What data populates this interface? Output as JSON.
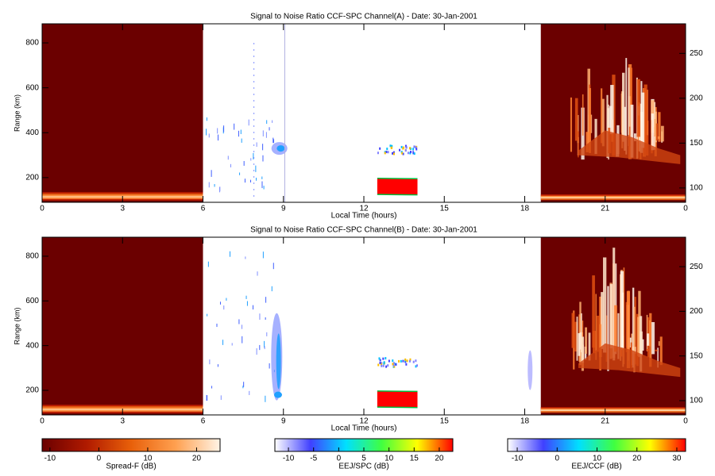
{
  "chart_data": [
    {
      "type": "heatmap",
      "title": "Signal to Noise Ratio CCF-SPC Channel(A) - Date: 30-Jan-2001",
      "xlabel": "Local Time (hours)",
      "ylabel": "Range (km)",
      "xlim": [
        0,
        24
      ],
      "xticks": [
        0,
        3,
        6,
        9,
        12,
        15,
        18,
        21,
        {
          "value": 24,
          "label": "0"
        }
      ],
      "ylim": [
        90,
        885
      ],
      "yticks": [
        200,
        400,
        600,
        800
      ],
      "y2lim": [
        84,
        283
      ],
      "y2ticks": [
        100,
        150,
        200,
        250
      ]
    },
    {
      "type": "heatmap",
      "title": "Signal to Noise Ratio CCF-SPC Channel(B) - Date: 30-Jan-2001",
      "xlabel": "Local Time (hours)",
      "ylabel": "Range (km)",
      "xlim": [
        0,
        24
      ],
      "xticks": [
        0,
        3,
        6,
        9,
        12,
        15,
        18,
        21,
        {
          "value": 24,
          "label": "0"
        }
      ],
      "ylim": [
        90,
        885
      ],
      "yticks": [
        200,
        400,
        600,
        800
      ],
      "y2lim": [
        84,
        283
      ],
      "y2ticks": [
        100,
        150,
        200,
        250
      ]
    }
  ],
  "colorbars": [
    {
      "label": "Spread-F (dB)",
      "clim": [
        -11.6,
        24.8
      ],
      "ticks": [
        -10,
        0,
        10,
        20
      ],
      "colors": [
        "#6b0000",
        "#b01a00",
        "#e8600a",
        "#ffa050",
        "#fff4e6"
      ]
    },
    {
      "label": "EEJ/SPC (dB)",
      "clim": [
        -12.7,
        22.7
      ],
      "ticks": [
        -10,
        -5,
        0,
        5,
        10,
        15,
        20
      ],
      "colors": [
        "#ffffff",
        "#4040ff",
        "#00e0ff",
        "#40ff40",
        "#ffff00",
        "#ff0000"
      ]
    },
    {
      "label": "EEJ/CCF (dB)",
      "clim": [
        -12.4,
        32.2
      ],
      "ticks": [
        -10,
        0,
        10,
        20,
        30
      ],
      "colors": [
        "#ffffff",
        "#4040ff",
        "#00e0ff",
        "#40ff40",
        "#ffff00",
        "#ff0000"
      ]
    }
  ]
}
